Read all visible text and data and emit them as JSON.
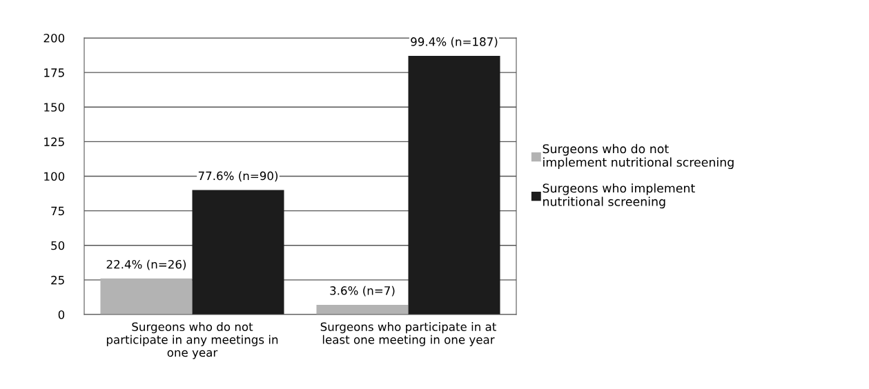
{
  "chart_data": {
    "type": "bar",
    "categories": [
      "Surgeons who do not\nparticipate in any meetings in\none year",
      "Surgeons who participate in at\nleast one meeting in one year"
    ],
    "series": [
      {
        "name": "Surgeons who do not\nimplement nutritional screening",
        "color": "#b3b3b3",
        "values": [
          26,
          7
        ],
        "value_labels": [
          "22.4% (n=26)",
          "3.6% (n=7)"
        ]
      },
      {
        "name": "Surgeons who implement\nnutritional screening",
        "color": "#1c1c1c",
        "values": [
          90,
          187
        ],
        "value_labels": [
          "77.6% (n=90)",
          "99.4% (n=187)"
        ]
      }
    ],
    "ylim": [
      0,
      200
    ],
    "yticks": [
      0,
      25,
      50,
      75,
      100,
      125,
      150,
      175,
      200
    ],
    "grid": "y",
    "legend": "right"
  }
}
